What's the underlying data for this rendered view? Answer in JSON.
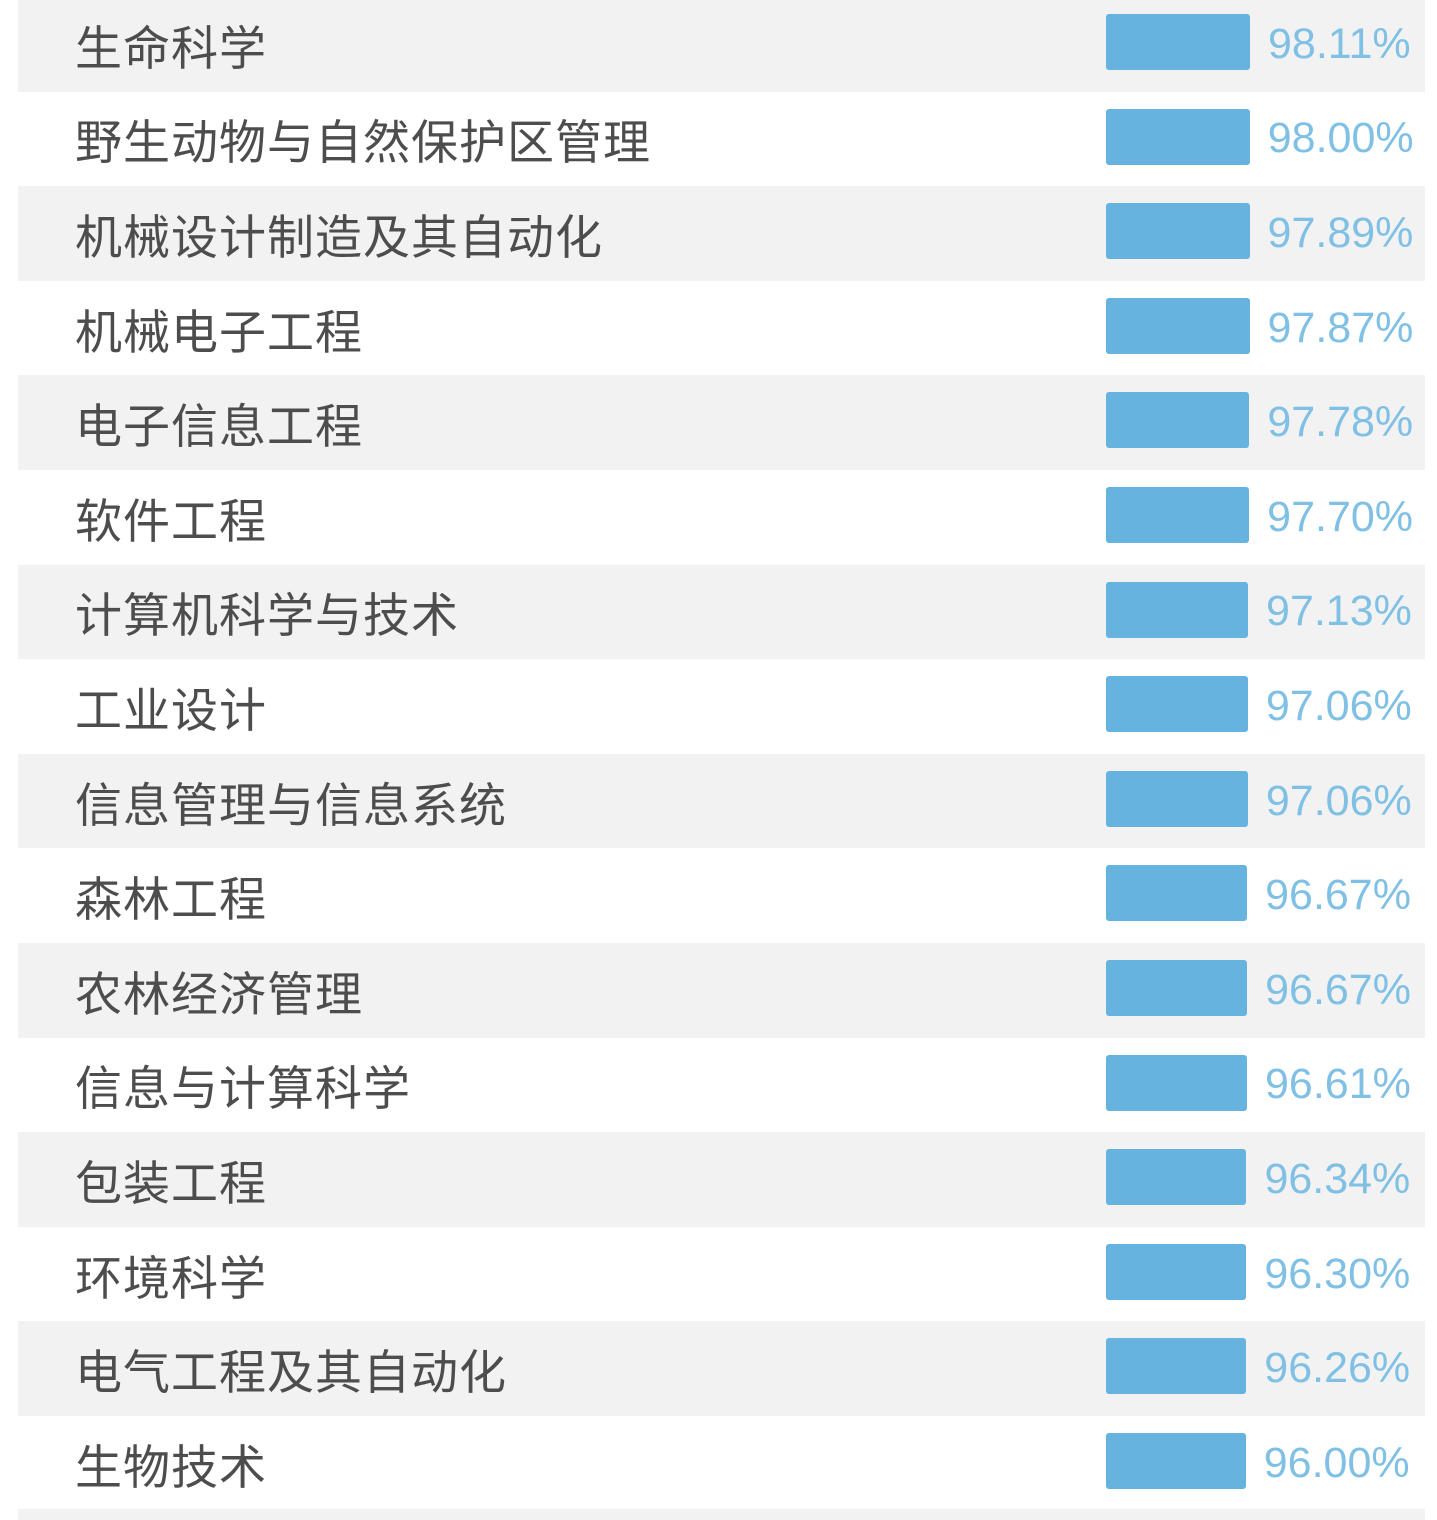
{
  "colors": {
    "bar": "#66b3df",
    "value_text": "#7fc0e4",
    "label_text": "#4d4d4d",
    "row_shaded": "#f2f2f2",
    "row_plain": "#ffffff"
  },
  "chart_data": {
    "type": "bar",
    "orientation": "horizontal",
    "categories": [
      "生命科学",
      "野生动物与自然保护区管理",
      "机械设计制造及其自动化",
      "机械电子工程",
      "电子信息工程",
      "软件工程",
      "计算机科学与技术",
      "工业设计",
      "信息管理与信息系统",
      "森林工程",
      "农林经济管理",
      "信息与计算科学",
      "包装工程",
      "环境科学",
      "电气工程及其自动化",
      "生物技术"
    ],
    "values": [
      98.11,
      98.0,
      97.89,
      97.87,
      97.78,
      97.7,
      97.13,
      97.06,
      97.06,
      96.67,
      96.67,
      96.61,
      96.34,
      96.3,
      96.26,
      96.0
    ],
    "value_labels": [
      "98.11%",
      "98.00%",
      "97.89%",
      "97.87%",
      "97.78%",
      "97.70%",
      "97.13%",
      "97.06%",
      "97.06%",
      "96.67%",
      "96.67%",
      "96.61%",
      "96.34%",
      "96.30%",
      "96.26%",
      "96.00%"
    ],
    "title": "",
    "xlabel": "",
    "ylabel": "",
    "grid": false,
    "legend": "none"
  }
}
